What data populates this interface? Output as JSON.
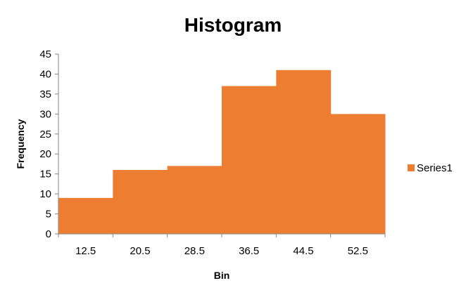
{
  "chart_data": {
    "type": "bar",
    "title": "Histogram",
    "xlabel": "Bin",
    "ylabel": "Frequency",
    "categories": [
      "12.5",
      "20.5",
      "28.5",
      "36.5",
      "44.5",
      "52.5"
    ],
    "series": [
      {
        "name": "Series1",
        "values": [
          9,
          16,
          17,
          37,
          41,
          30
        ],
        "color": "#ED7D31"
      }
    ],
    "ylim": [
      0,
      45
    ],
    "yticks": [
      0,
      5,
      10,
      15,
      20,
      25,
      30,
      35,
      40,
      45
    ],
    "grid": false,
    "legend_position": "right"
  }
}
